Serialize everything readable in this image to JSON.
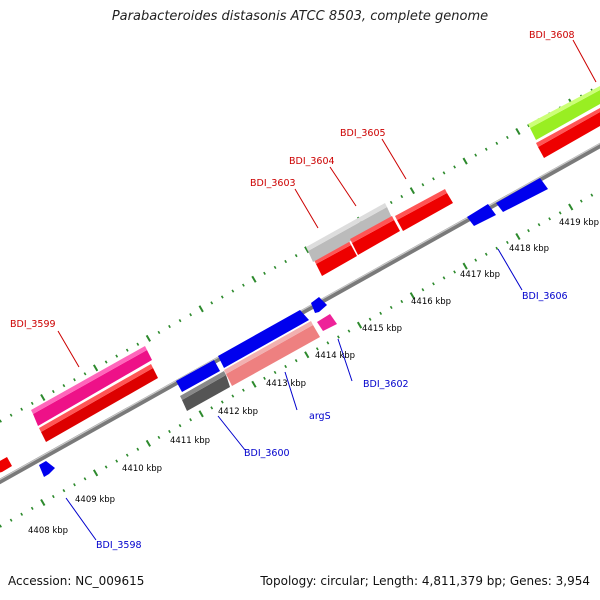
{
  "title": "Parabacteroides distasonis ATCC 8503, complete genome",
  "footer": {
    "accession": "Accession: NC_009615",
    "summary": "Topology: circular; Length: 4,811,379 bp; Genes: 3,954"
  },
  "colors": {
    "backbone": "#8a8a8a",
    "tick": "#2d8a2d",
    "kbp_label": "#000000",
    "forward_label": "#cc0000",
    "reverse_label": "#0000cc"
  },
  "scale": {
    "labels": [
      "4408 kbp",
      "4409 kbp",
      "4410 kbp",
      "4411 kbp",
      "4412 kbp",
      "4413 kbp",
      "4414 kbp",
      "4415 kbp",
      "4416 kbp",
      "4417 kbp",
      "4418 kbp",
      "4419 kbp"
    ]
  },
  "genes": [
    {
      "name": "BDI_3598",
      "strand": "reverse"
    },
    {
      "name": "BDI_3599",
      "strand": "forward"
    },
    {
      "name": "BDI_3600",
      "strand": "reverse"
    },
    {
      "name": "argS",
      "strand": "reverse"
    },
    {
      "name": "BDI_3602",
      "strand": "reverse"
    },
    {
      "name": "BDI_3603",
      "strand": "forward"
    },
    {
      "name": "BDI_3604",
      "strand": "forward"
    },
    {
      "name": "BDI_3605",
      "strand": "forward"
    },
    {
      "name": "BDI_3606",
      "strand": "reverse"
    },
    {
      "name": "BDI_3608",
      "strand": "forward"
    }
  ]
}
